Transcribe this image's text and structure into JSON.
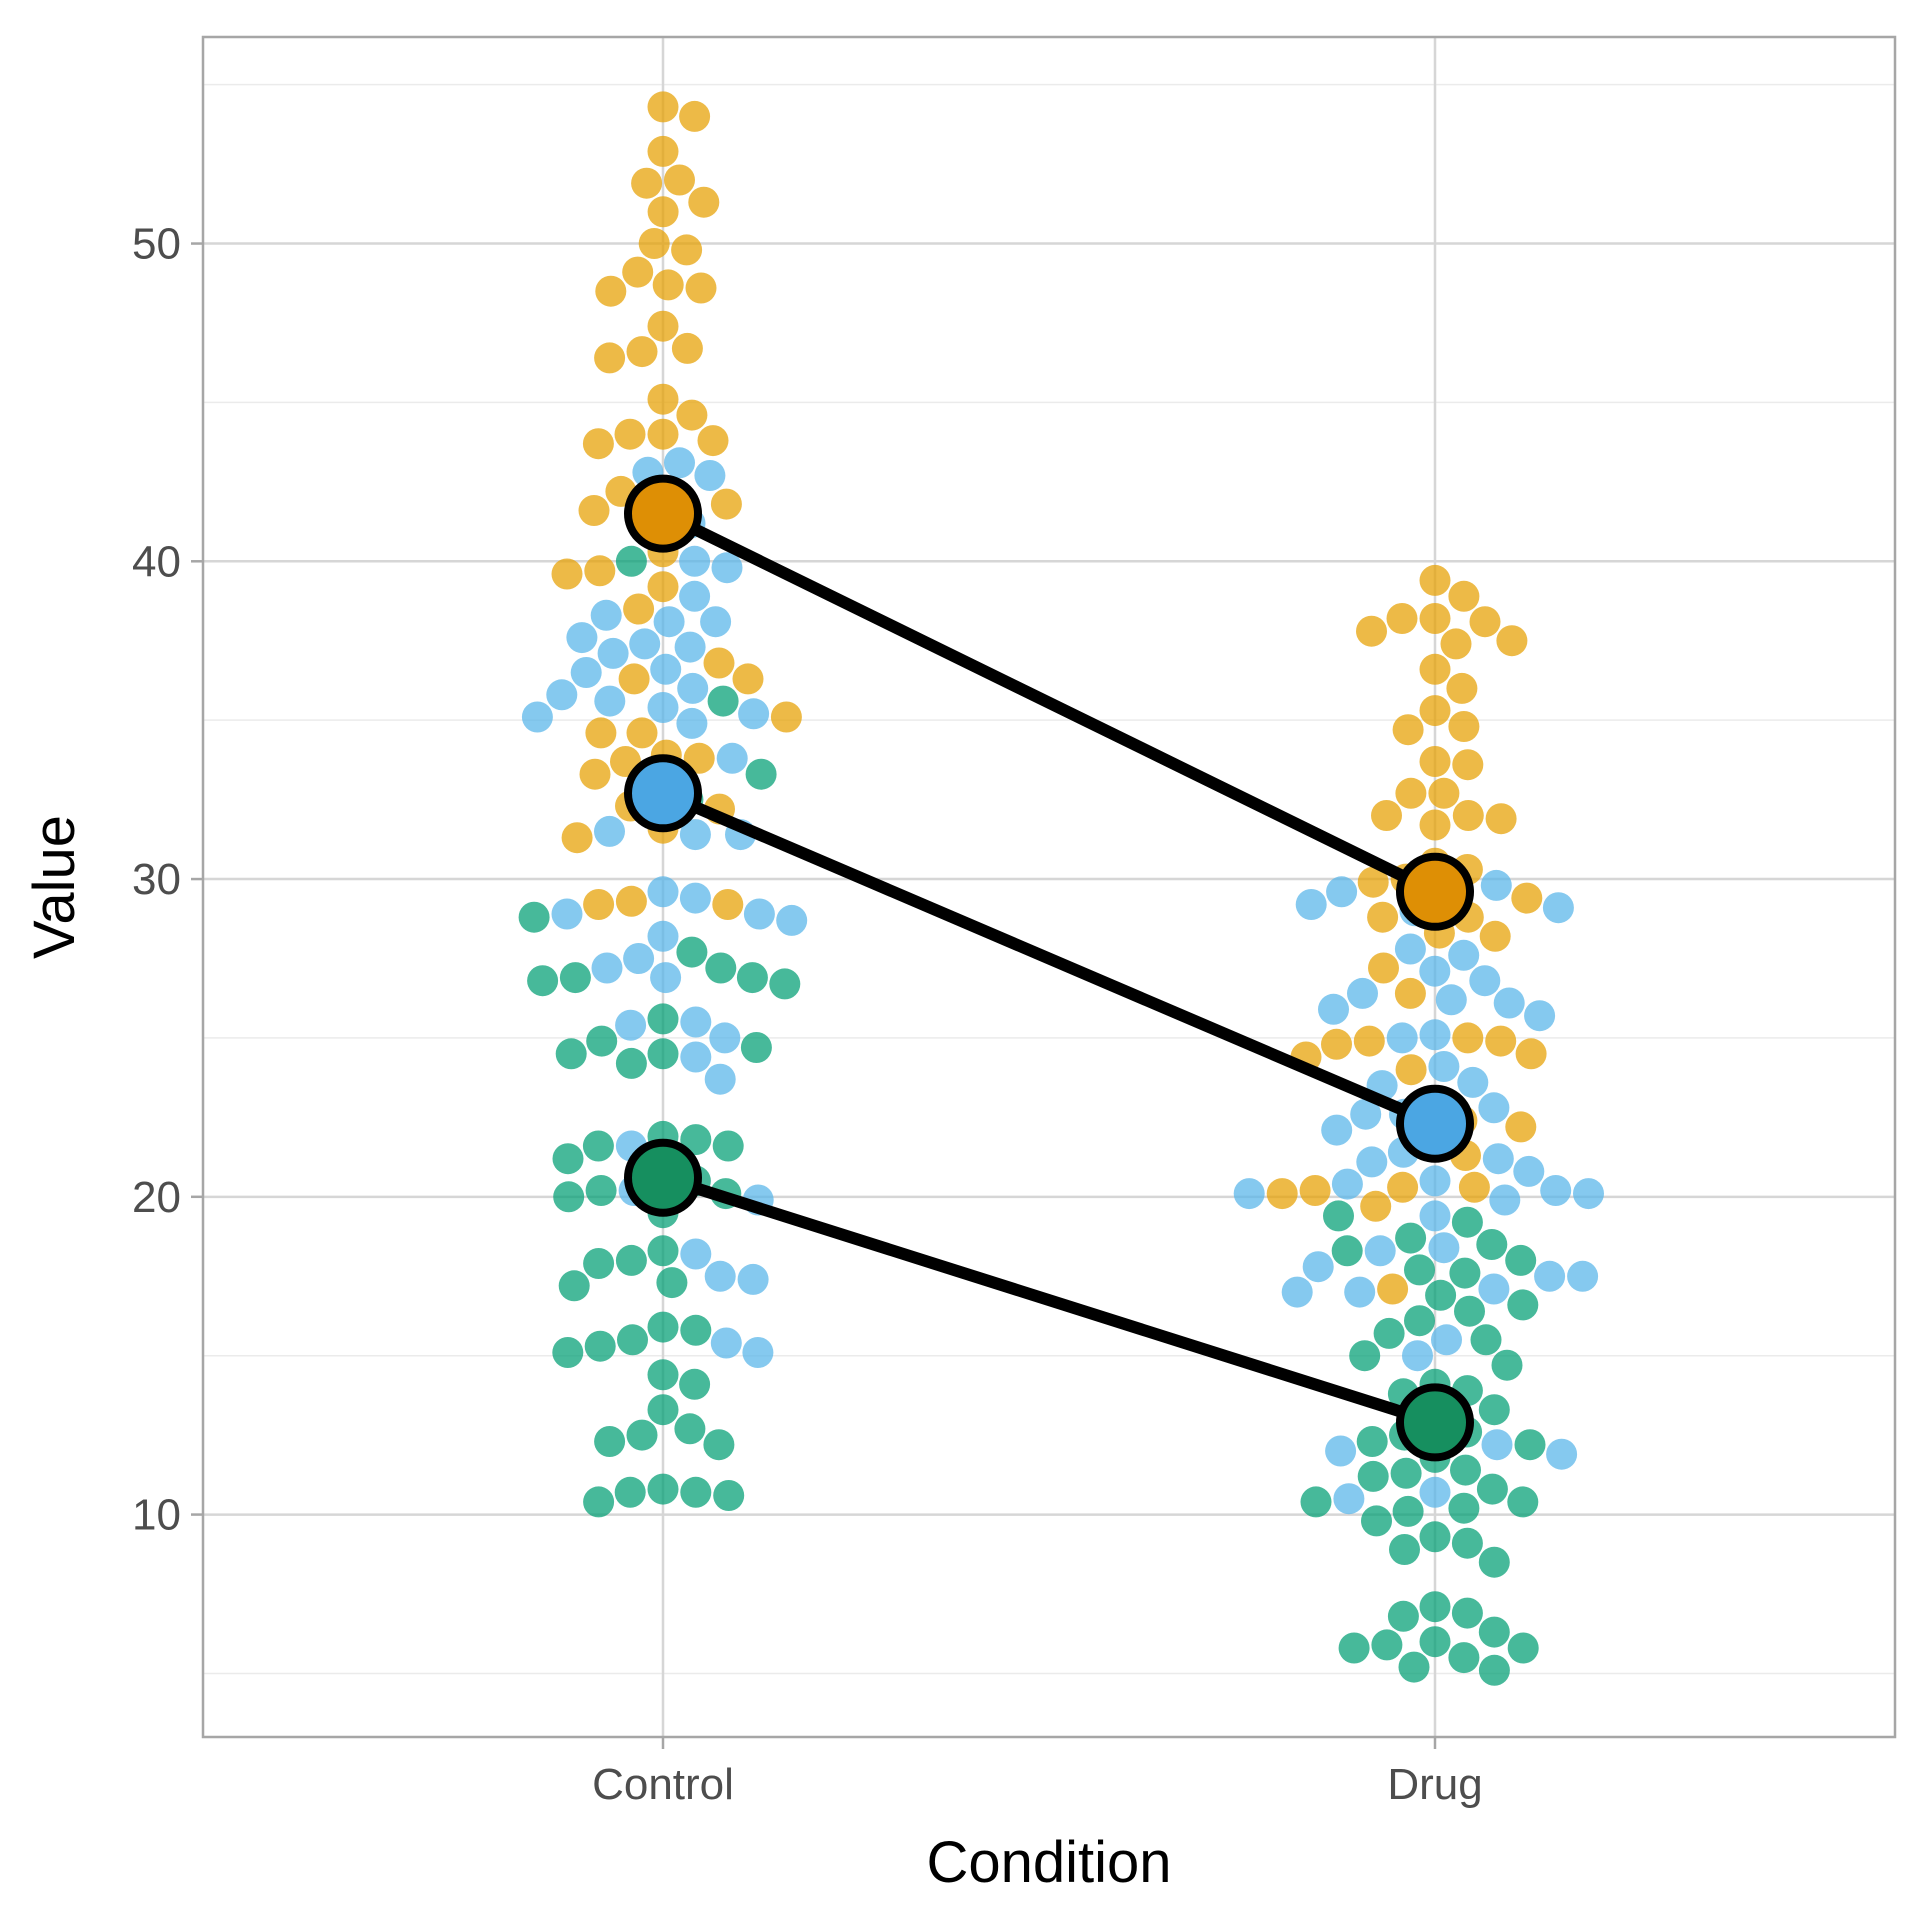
{
  "chart_data": {
    "type": "scatter",
    "xlabel": "Condition",
    "ylabel": "Value",
    "categories": [
      "Control",
      "Drug"
    ],
    "ylim": [
      3,
      56.5
    ],
    "y_ticks": [
      10,
      20,
      30,
      40,
      50
    ],
    "grid": true,
    "legend": "none",
    "colors": {
      "orange": "#e69f00",
      "blue": "#56b4e9",
      "green": "#009e73"
    },
    "summary_colors": {
      "orange": "#de8f05",
      "blue": "#4ba6e3",
      "green": "#168f5f"
    },
    "groups": [
      {
        "color_key": "orange",
        "means": [
          41.5,
          29.6
        ],
        "points": [
          {
            "category": "Control",
            "values": [
              54.3,
              54.0,
              52.9,
              52.0,
              51.9,
              51.3,
              51.0,
              50.0,
              49.8,
              49.1,
              48.7,
              48.6,
              48.5,
              47.4,
              46.7,
              46.6,
              46.4,
              45.1,
              44.6,
              44.0,
              44.0,
              43.8,
              43.7,
              42.2,
              41.8,
              41.6,
              41.4,
              40.3,
              39.7,
              39.6,
              39.2,
              38.5,
              36.8,
              36.3,
              36.3,
              35.1,
              34.6,
              34.6,
              33.9,
              33.8,
              33.7,
              33.3,
              32.9,
              32.3,
              32.2,
              31.6,
              31.3,
              29.3,
              29.2,
              29.2
            ]
          },
          {
            "category": "Drug",
            "values": [
              39.4,
              38.9,
              38.2,
              38.2,
              38.1,
              37.8,
              37.5,
              37.4,
              36.6,
              36.0,
              35.3,
              34.8,
              34.7,
              33.7,
              33.6,
              32.7,
              32.7,
              32.0,
              32.0,
              31.9,
              31.7,
              30.5,
              30.3,
              30.0,
              29.9,
              29.4,
              28.8,
              28.8,
              28.3,
              28.2,
              27.2,
              26.4,
              25.0,
              24.9,
              24.9,
              24.8,
              24.5,
              24.4,
              24.0,
              23.0,
              22.4,
              22.2,
              21.7,
              21.3,
              20.3,
              20.1,
              20.2,
              20.3,
              19.7,
              17.1
            ]
          }
        ]
      },
      {
        "color_key": "blue",
        "means": [
          32.7,
          22.3
        ],
        "points": [
          {
            "category": "Control",
            "values": [
              43.1,
              42.8,
              42.7,
              42.0,
              41.2,
              40.0,
              39.8,
              38.9,
              38.3,
              38.1,
              38.1,
              37.6,
              37.4,
              37.3,
              37.1,
              36.6,
              36.5,
              36.0,
              35.8,
              35.6,
              35.4,
              35.2,
              35.1,
              34.9,
              33.8,
              31.5,
              31.4,
              31.4,
              29.6,
              29.4,
              28.9,
              28.9,
              28.7,
              28.2,
              27.5,
              27.2,
              26.9,
              25.5,
              25.4,
              25.0,
              24.4,
              23.7,
              21.6,
              20.2,
              19.9,
              18.2,
              17.5,
              17.4,
              15.4,
              15.1
            ]
          },
          {
            "category": "Drug",
            "values": [
              29.8,
              29.6,
              29.5,
              29.2,
              29.1,
              29.0,
              27.8,
              27.6,
              27.1,
              26.8,
              26.4,
              26.2,
              26.1,
              25.9,
              25.7,
              25.1,
              25.0,
              24.1,
              23.6,
              23.5,
              22.8,
              22.6,
              22.6,
              22.1,
              21.4,
              21.2,
              21.1,
              20.8,
              20.5,
              20.4,
              20.2,
              20.1,
              20.1,
              19.9,
              19.4,
              18.4,
              18.3,
              17.8,
              17.5,
              17.5,
              17.1,
              17.0,
              17.0,
              15.5,
              15.0,
              12.2,
              12.0,
              11.9,
              10.7,
              10.5
            ]
          }
        ]
      },
      {
        "color_key": "green",
        "means": [
          20.6,
          12.9
        ],
        "points": [
          {
            "category": "Control",
            "values": [
              40.0,
              35.6,
              33.3,
              32.5,
              28.8,
              27.7,
              27.2,
              26.9,
              26.9,
              26.8,
              26.7,
              25.6,
              24.9,
              24.7,
              24.5,
              24.5,
              24.2,
              21.9,
              21.8,
              21.6,
              21.6,
              21.2,
              20.7,
              20.5,
              20.2,
              20.1,
              20.0,
              19.5,
              18.3,
              18.0,
              17.9,
              17.3,
              17.2,
              15.9,
              15.8,
              15.5,
              15.3,
              15.1,
              14.4,
              14.1,
              13.3,
              12.7,
              12.5,
              12.3,
              12.2,
              10.8,
              10.7,
              10.7,
              10.6,
              10.4
            ]
          },
          {
            "category": "Drug",
            "values": [
              19.4,
              19.2,
              18.7,
              18.5,
              18.3,
              18.0,
              17.7,
              17.6,
              16.9,
              16.6,
              16.4,
              16.1,
              15.7,
              15.5,
              15.0,
              14.7,
              14.1,
              13.9,
              13.8,
              13.3,
              12.9,
              12.6,
              12.5,
              12.3,
              12.2,
              11.8,
              11.4,
              11.3,
              11.2,
              10.8,
              10.4,
              10.4,
              10.2,
              10.1,
              9.8,
              9.3,
              9.1,
              8.9,
              8.5,
              7.1,
              6.9,
              6.8,
              6.3,
              6.0,
              5.9,
              5.8,
              5.8,
              5.5,
              5.2,
              5.1
            ]
          }
        ]
      }
    ]
  }
}
